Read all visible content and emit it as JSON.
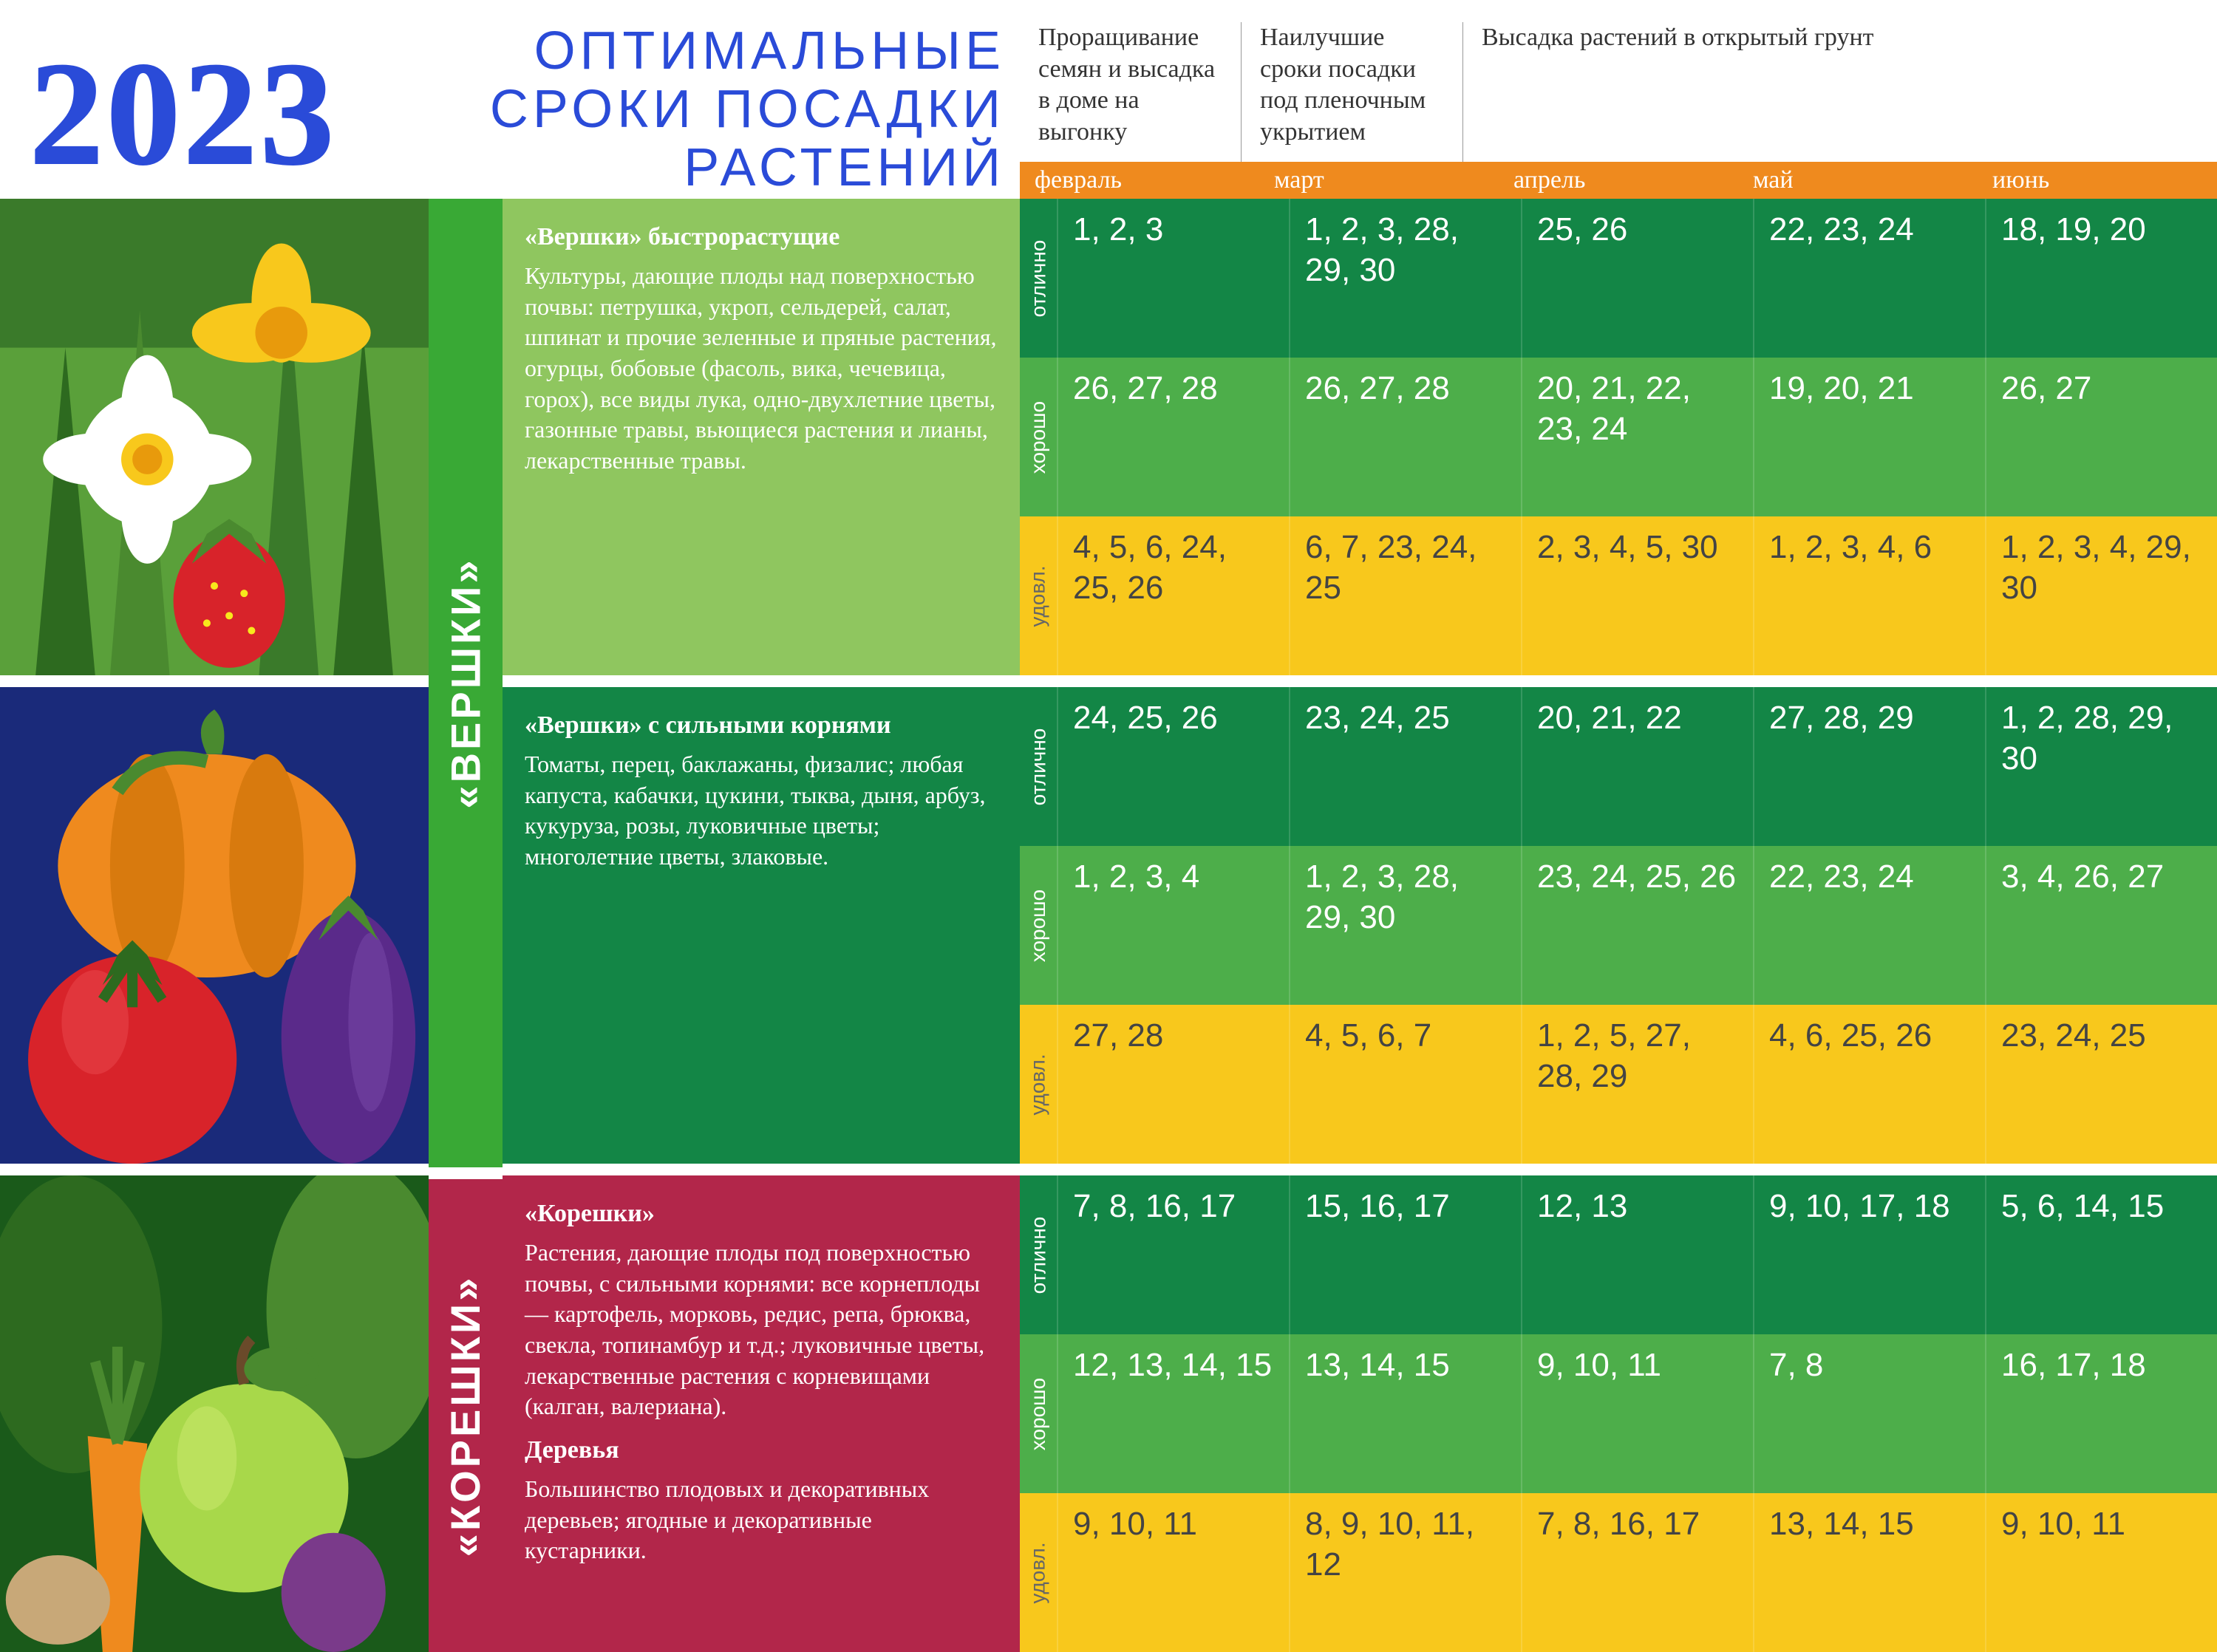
{
  "header": {
    "year": "2023",
    "title": "ОПТИМАЛЬНЫЕ СРОКИ ПОСАДКИ РАСТЕНИЙ",
    "legend": [
      "Проращивание семян и высадка в доме на выгонку",
      "Наилучшие сроки посадки под пленочным укрытием",
      "Высадка растений в открытый грунт"
    ],
    "months": [
      "февраль",
      "март",
      "апрель",
      "май",
      "июнь"
    ],
    "month_bg_color": "#ef8a1e"
  },
  "colors": {
    "excellent": "#138646",
    "good": "#4dae4a",
    "ok": "#f8c81c",
    "cat1": "#39a935",
    "cat2": "#b2264a",
    "desc1": "#8fc65f",
    "desc2": "#138646",
    "desc3": "#b2264a",
    "title_color": "#2a4bd8"
  },
  "categories": [
    {
      "label": "«ВЕРШКИ»"
    },
    {
      "label": "«КОРЕШКИ»"
    }
  ],
  "descriptions": [
    {
      "title": "«Вершки» быстрорастущие",
      "text": "Культуры, дающие плоды над поверхностью почвы: петрушка, укроп, сельдерей, салат, шпинат и прочие зеленные и пряные растения, огурцы, бобовые (фасоль, вика, чечевица, горох), все виды лука, одно-двухлетние цветы, газонные травы, вьющиеся растения и лианы, лекарственные травы."
    },
    {
      "title": "«Вершки» с сильными корнями",
      "text": "Томаты, перец, баклажаны, физалис; любая капуста, кабачки, цукини, тыква, дыня, арбуз, кукуруза, розы, луковичные цветы; многолетние цветы, злаковые."
    },
    {
      "title": "«Корешки»",
      "text": "Растения, дающие плоды под поверхностью почвы, с сильными корнями: все корнеплоды — картофель, морковь, редис, репа, брюква, свекла, топинамбур и т.д.; луковичные цветы, лекарственные растения с корневищами (калган, валериана).",
      "title2": "Деревья",
      "text2": "Большинство плодовых и декоративных деревьев; ягодные и декоративные кустарники."
    }
  ],
  "quality_labels": [
    "отлично",
    "хорошо",
    "удовл."
  ],
  "groups": [
    {
      "rows": [
        [
          "1, 2, 3",
          "1, 2, 3, 28, 29, 30",
          "25, 26",
          "22, 23, 24",
          "18, 19, 20"
        ],
        [
          "26, 27, 28",
          "26, 27, 28",
          "20, 21, 22, 23, 24",
          "19, 20, 21",
          "26, 27"
        ],
        [
          "4, 5, 6, 24, 25, 26",
          "6, 7, 23, 24, 25",
          "2, 3, 4, 5, 30",
          "1, 2, 3, 4, 6",
          "1, 2, 3, 4, 29, 30"
        ]
      ]
    },
    {
      "rows": [
        [
          "24, 25, 26",
          "23, 24, 25",
          "20, 21, 22",
          "27, 28, 29",
          "1, 2, 28, 29, 30"
        ],
        [
          "1, 2, 3, 4",
          "1, 2, 3, 28, 29, 30",
          "23, 24, 25, 26",
          "22, 23, 24",
          "3, 4, 26, 27"
        ],
        [
          "27, 28",
          "4, 5, 6, 7",
          "1, 2, 5, 27, 28, 29",
          "4, 6, 25, 26",
          "23, 24, 25"
        ]
      ]
    },
    {
      "rows": [
        [
          "7, 8, 16, 17",
          "15, 16, 17",
          "12, 13",
          "9, 10, 17, 18",
          "5, 6, 14, 15"
        ],
        [
          "12, 13, 14, 15",
          "13, 14, 15",
          "9, 10, 11",
          "7, 8",
          "16, 17, 18"
        ],
        [
          "9, 10, 11",
          "8, 9, 10, 11, 12",
          "7, 8, 16, 17",
          "13, 14, 15",
          "9, 10, 11"
        ]
      ]
    }
  ]
}
